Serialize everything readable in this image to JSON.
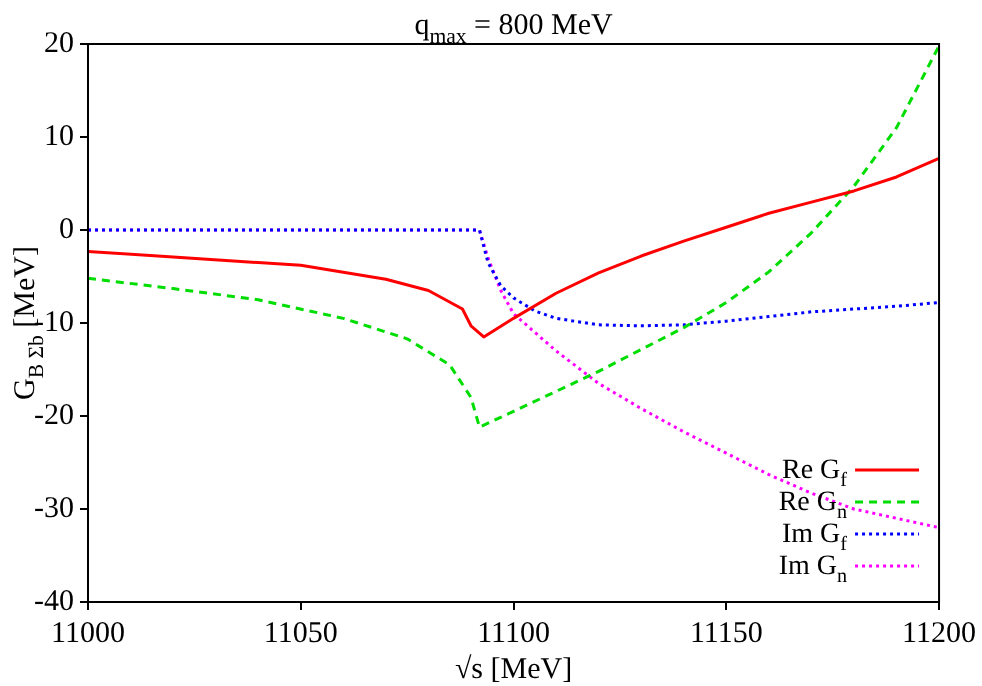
{
  "chart_data": {
    "type": "line",
    "title": "q$_{max}$ = 800 MeV",
    "xlabel": "√s [MeV]",
    "ylabel": "G$_{B Σ}$$_{b}$ [MeV]",
    "xlim": [
      11000,
      11200
    ],
    "xticks": [
      11000,
      11050,
      11100,
      11150,
      11200
    ],
    "ylim": [
      -40,
      20
    ],
    "yticks": [
      -40,
      -30,
      -20,
      -10,
      0,
      10,
      20
    ],
    "grid": false,
    "legend": "bottom right",
    "marker": "none",
    "series": [
      {
        "name": "Re G$_{f}$",
        "color": "#ff0000",
        "line_style": "solid",
        "x": [
          11000,
          11050,
          11070,
          11080,
          11088,
          11090,
          11093,
          11100,
          11110,
          11120,
          11130,
          11140,
          11150,
          11160,
          11170,
          11180,
          11190,
          11200
        ],
        "values": [
          -2.3,
          -3.8,
          -5.3,
          -6.5,
          -8.5,
          -10.3,
          -11.5,
          -9.5,
          -6.8,
          -4.6,
          -2.8,
          -1.2,
          0.3,
          1.8,
          3,
          4.2,
          5.7,
          7.7
        ]
      },
      {
        "name": "Re G$_{n}$",
        "color": "#00dd00",
        "line_style": "dashed",
        "x": [
          11000,
          11020,
          11040,
          11060,
          11075,
          11085,
          11090,
          11092,
          11100,
          11120,
          11140,
          11150,
          11160,
          11170,
          11180,
          11190,
          11200
        ],
        "values": [
          -5.2,
          -6.3,
          -7.5,
          -9.5,
          -11.7,
          -14.5,
          -18,
          -21.2,
          -19.5,
          -15.2,
          -10.5,
          -7.8,
          -4.5,
          -0.3,
          4.7,
          11,
          19.8
        ]
      },
      {
        "name": "Im G$_{f}$",
        "color": "#0000ff",
        "line_style": "dotted",
        "x": [
          11000,
          11092,
          11094,
          11097,
          11100,
          11105,
          11110,
          11120,
          11130,
          11140,
          11150,
          11160,
          11170,
          11180,
          11190,
          11200
        ],
        "values": [
          0,
          0,
          -3.5,
          -6,
          -7.3,
          -8.7,
          -9.5,
          -10.2,
          -10.3,
          -10.2,
          -9.8,
          -9.3,
          -8.8,
          -8.5,
          -8.2,
          -7.8
        ]
      },
      {
        "name": "Im G$_{n}$",
        "color": "#ff00ff",
        "line_style": "dotted",
        "x": [
          11000,
          11092,
          11094,
          11097,
          11100,
          11110,
          11120,
          11130,
          11140,
          11150,
          11160,
          11170,
          11180,
          11200
        ],
        "values": [
          0,
          0,
          -3,
          -6.5,
          -9,
          -13,
          -16.5,
          -19.2,
          -21.7,
          -24,
          -26.3,
          -28.3,
          -30,
          -32
        ]
      }
    ]
  }
}
